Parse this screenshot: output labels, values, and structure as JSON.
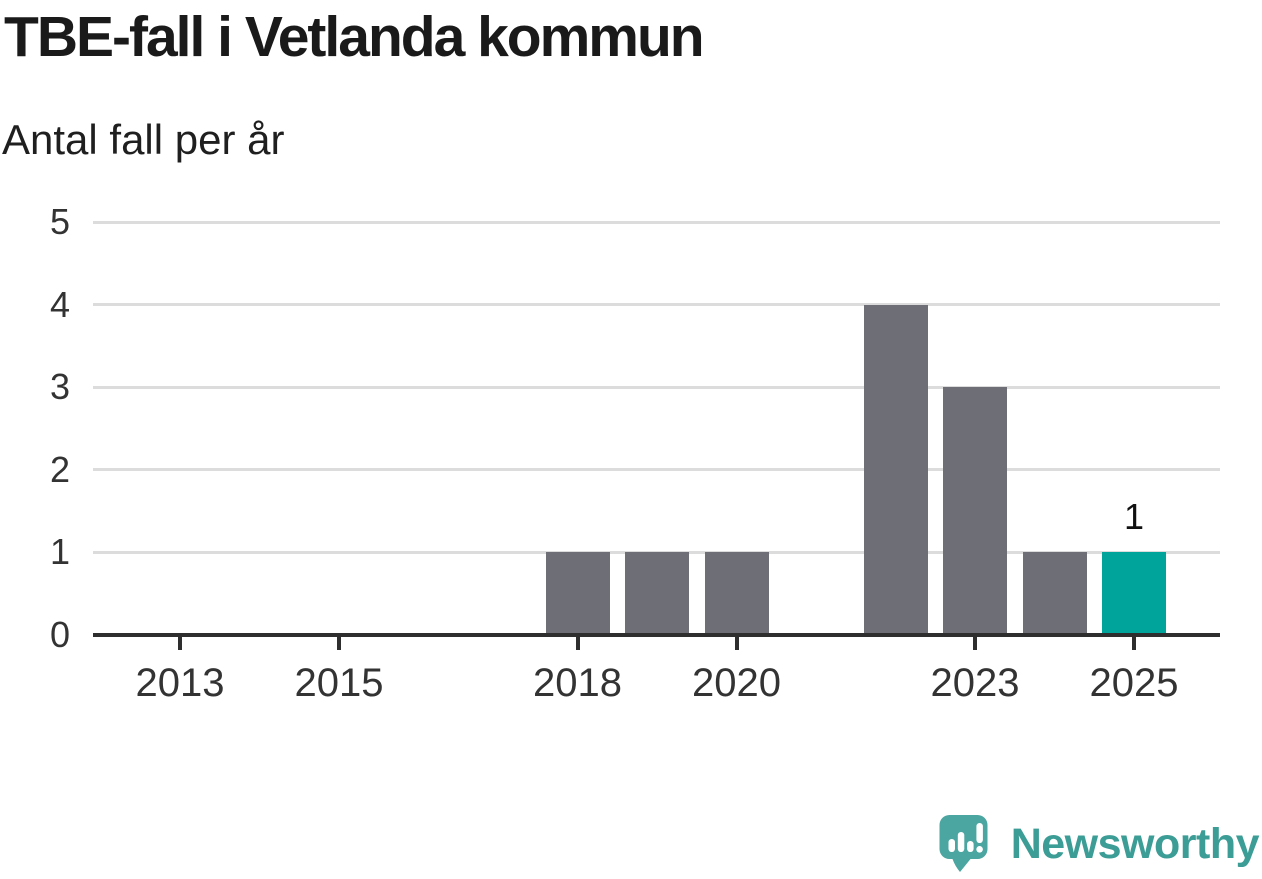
{
  "chart_data": {
    "type": "bar",
    "title": "TBE-fall i Vetlanda kommun",
    "subtitle": "Antal fall per år",
    "categories": [
      "2013",
      "2014",
      "2015",
      "2016",
      "2017",
      "2018",
      "2019",
      "2020",
      "2021",
      "2022",
      "2023",
      "2024",
      "2025"
    ],
    "values": [
      0,
      0,
      0,
      0,
      0,
      1,
      1,
      1,
      0,
      4,
      3,
      1,
      1
    ],
    "xlabel": "",
    "ylabel": "Antal fall per år",
    "ylim": [
      0,
      5
    ],
    "y_ticks": [
      0,
      1,
      2,
      3,
      4,
      5
    ],
    "x_tick_labels": [
      "2013",
      "2015",
      "2018",
      "2020",
      "2023",
      "2025"
    ],
    "grid": "horizontal",
    "legend": "none",
    "bar_color": "#6e6e76",
    "highlight_category": "2025",
    "highlight_color": "#00a49a",
    "value_labels": [
      {
        "category": "2025",
        "text": "1"
      }
    ]
  },
  "brand": {
    "name": "Newsworthy",
    "text_color": "#3c9d96",
    "bubble_color": "#4ba5a0"
  }
}
